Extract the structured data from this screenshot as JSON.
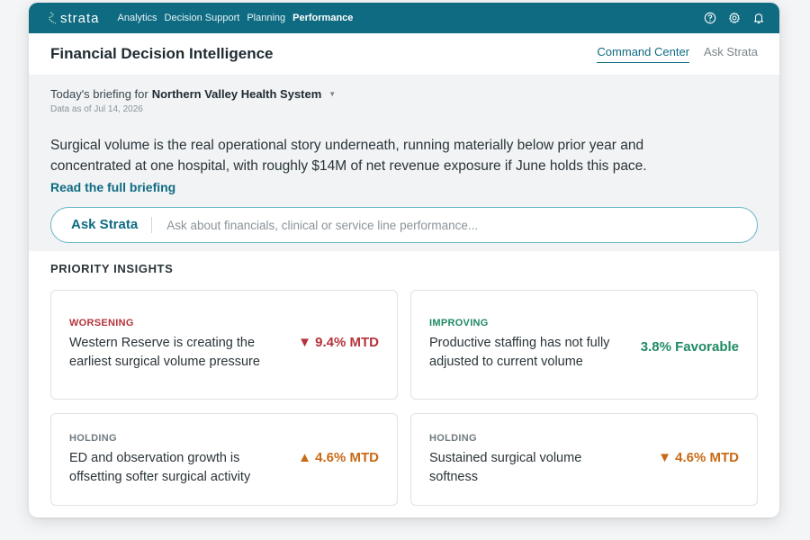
{
  "app": {
    "brand": "strata",
    "nav": [
      "Analytics",
      "Decision Support",
      "Planning",
      "Performance"
    ],
    "active_nav": "Performance",
    "icons": [
      "help-icon",
      "settings-icon",
      "bell-icon"
    ],
    "colors": {
      "brand": "#0f6b82",
      "worsening": "#b5343b",
      "improving": "#1f8a63",
      "holding": "#c86a15"
    }
  },
  "header": {
    "title": "Financial Decision Intelligence",
    "tabs": [
      "Command Center",
      "Ask Strata"
    ],
    "active_tab": "Command Center"
  },
  "briefing": {
    "prefix": "Today's briefing for",
    "organization": "Northern Valley Health System",
    "as_of": "Data as of Jul 14, 2026",
    "summary": "Surgical volume is the real operational story underneath, running materially below prior year and concentrated at one hospital, with roughly $14M of net revenue exposure if June holds this pace.",
    "link": "Read the full briefing"
  },
  "ask": {
    "label": "Ask Strata",
    "placeholder": "Ask about financials, clinical or service line performance..."
  },
  "insights": {
    "title": "PRIORITY INSIGHTS",
    "cards": [
      {
        "status": "WORSENING",
        "text": "Western Reserve is creating the earliest surgical volume pressure",
        "metric": "▼ 9.4% MTD",
        "tone": "worsening"
      },
      {
        "status": "IMPROVING",
        "text": "Productive staffing has not fully adjusted to current volume",
        "metric": "3.8% Favorable",
        "tone": "improving"
      },
      {
        "status": "HOLDING",
        "text": "ED and observation growth is offsetting softer surgical activity",
        "metric": "▲ 4.6% MTD",
        "tone": "holding"
      },
      {
        "status": "HOLDING",
        "text": "Sustained surgical volume softness",
        "metric": "▼ 4.6% MTD",
        "tone": "holding"
      }
    ]
  }
}
